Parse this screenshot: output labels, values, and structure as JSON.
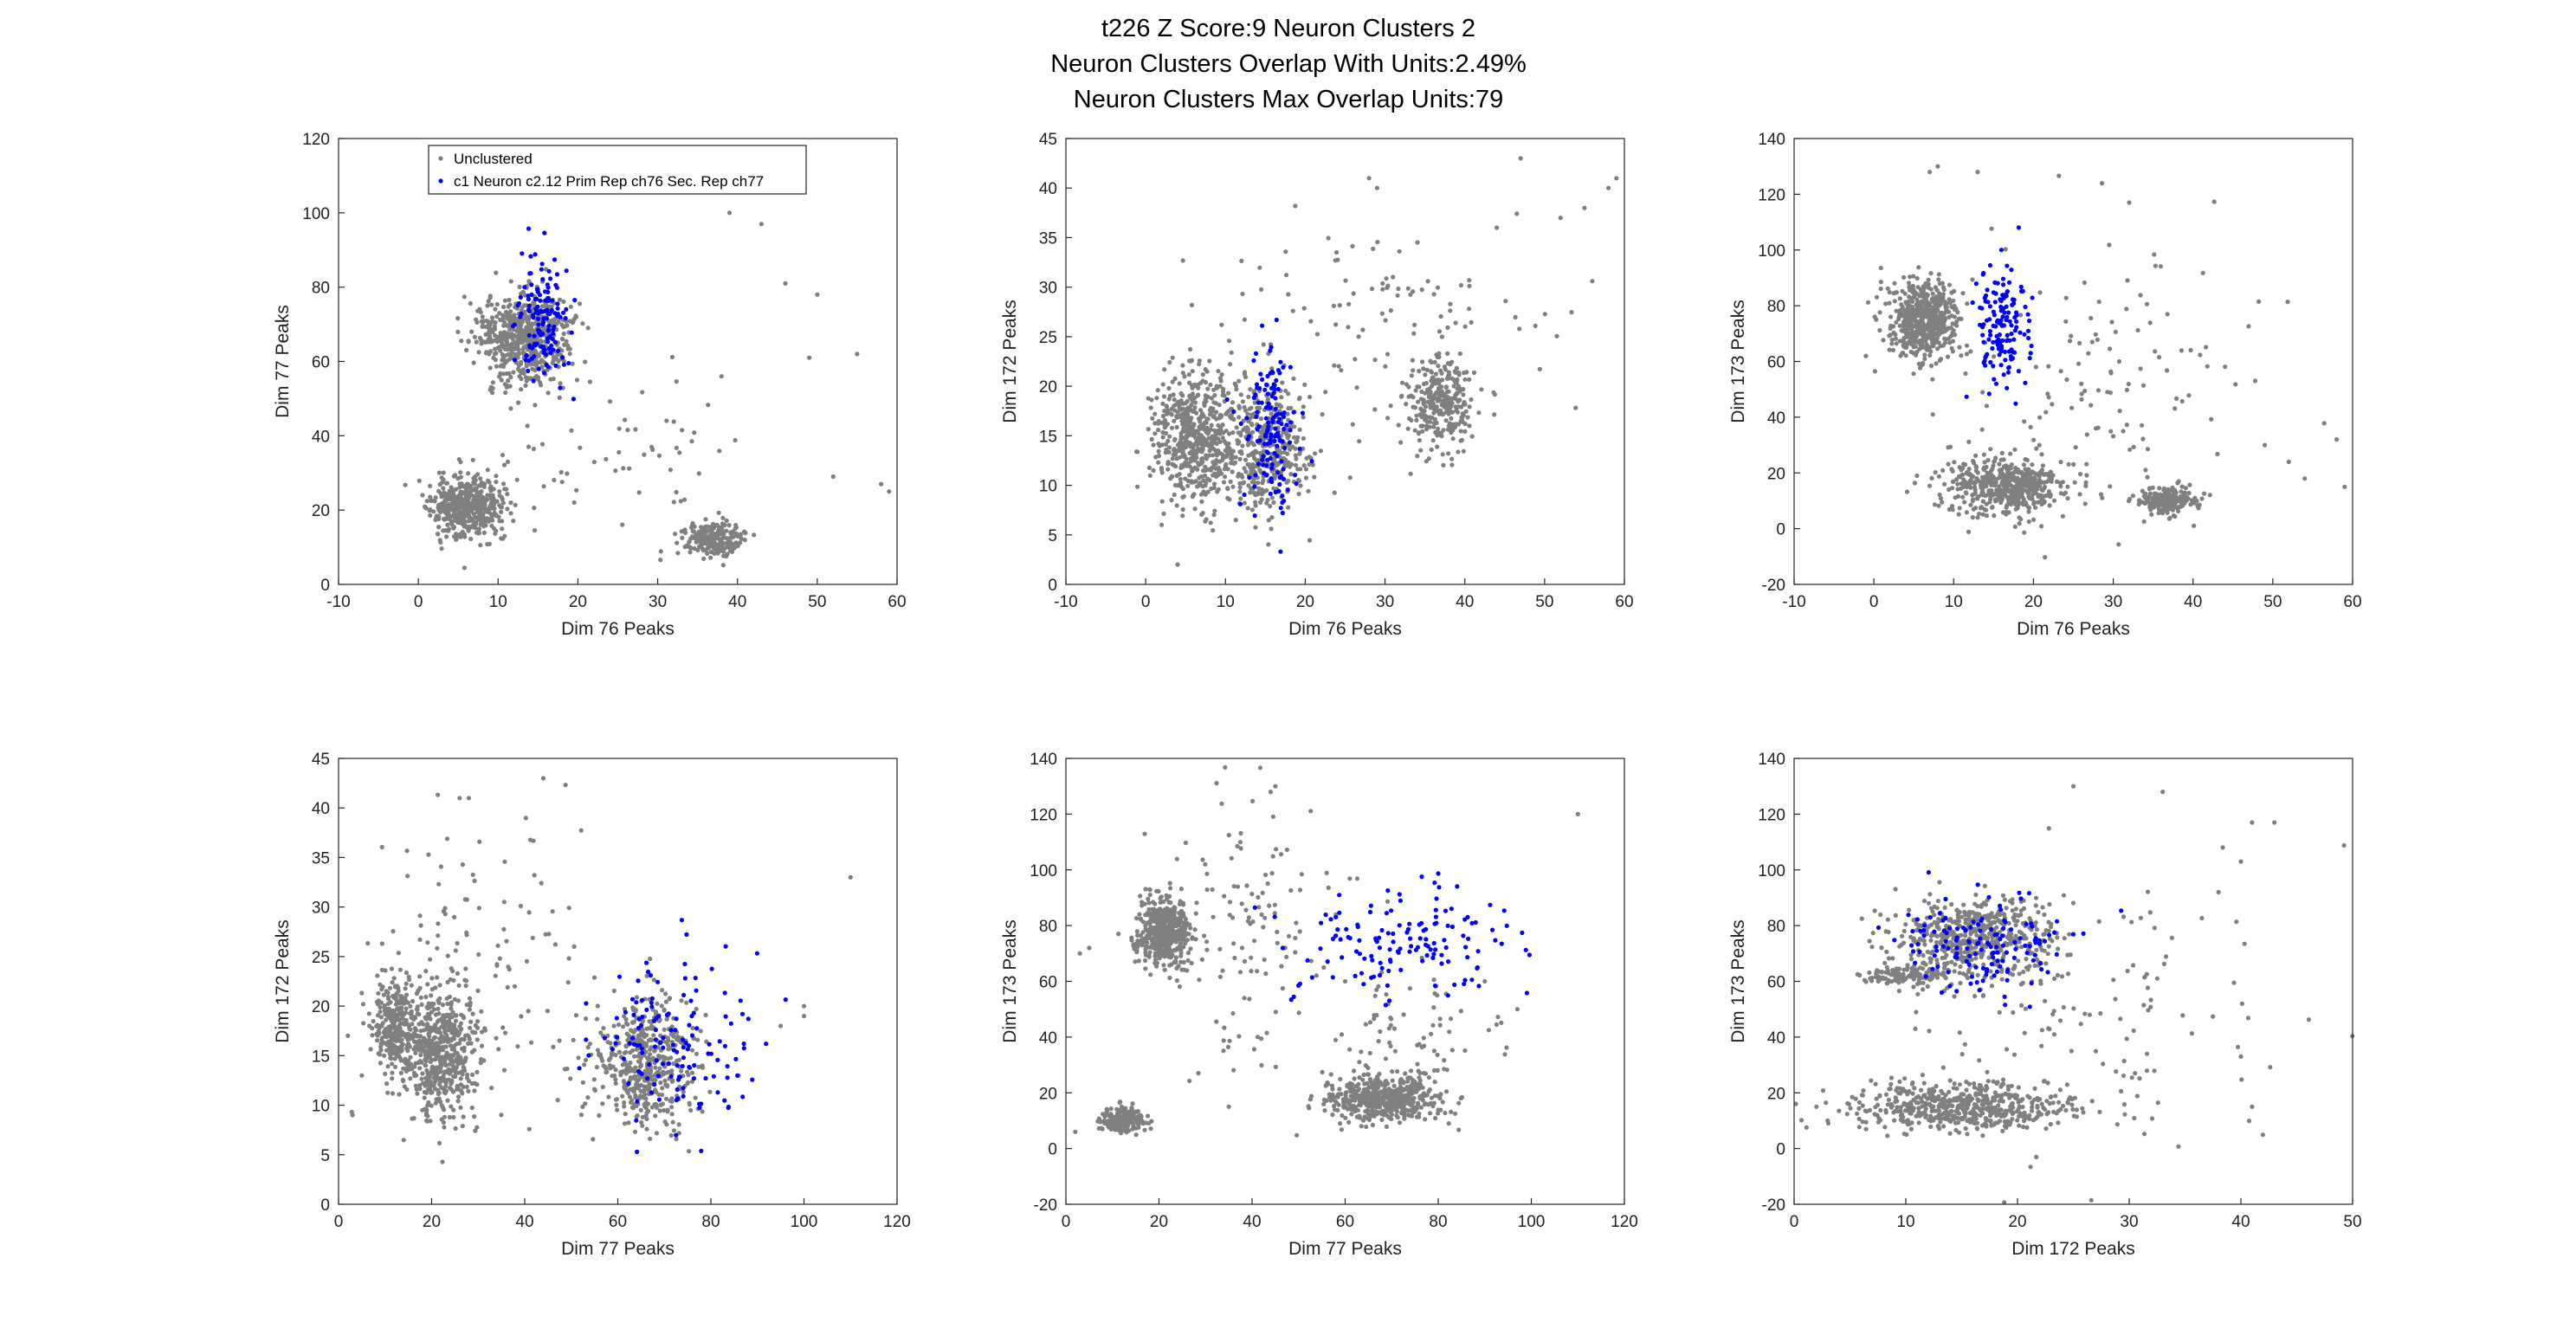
{
  "figure": {
    "title_lines": [
      "t226 Z Score:9 Neuron Clusters 2",
      "Neuron Clusters Overlap With Units:2.49%",
      "Neuron Clusters Max Overlap Units:79"
    ],
    "colors": {
      "unclustered": "#808080",
      "cluster": "#0000ff",
      "axis": "#262626"
    }
  },
  "legend": {
    "entries": [
      "Unclustered",
      "c1 Neuron c2.12 Prim Rep ch76 Sec. Rep ch77"
    ],
    "placement": "top-left of first subplot"
  },
  "chart_data": [
    {
      "type": "scatter",
      "xlabel": "Dim 76 Peaks",
      "ylabel": "Dim 77 Peaks",
      "xlim": [
        -10,
        60
      ],
      "ylim": [
        0,
        120
      ],
      "xticks": [
        -10,
        0,
        10,
        20,
        30,
        40,
        50,
        60
      ],
      "yticks": [
        0,
        20,
        40,
        60,
        80,
        100,
        120
      ],
      "series": [
        {
          "name": "Unclustered",
          "color": "#808080",
          "seed": 11,
          "clusters": [
            [
              6,
              21,
              2.2,
              4,
              500
            ],
            [
              13,
              67,
              3,
              6,
              600
            ],
            [
              37,
              12,
              2,
              2.5,
              220
            ],
            [
              26,
              35,
              9,
              14,
              60
            ]
          ],
          "extra": [
            [
              58,
              27
            ],
            [
              59,
              25
            ],
            [
              52,
              29
            ],
            [
              50,
              78
            ],
            [
              55,
              62
            ],
            [
              43,
              97
            ],
            [
              39,
              100
            ],
            [
              46,
              81
            ],
            [
              49,
              61
            ],
            [
              38,
              56
            ]
          ]
        },
        {
          "name": "c1 Neuron c2.12 Prim Rep ch76 Sec. Rep ch77",
          "color": "#0000ff",
          "seed": 21,
          "clusters": [
            [
              15.5,
              72,
              1.6,
              9,
              140
            ]
          ]
        }
      ]
    },
    {
      "type": "scatter",
      "xlabel": "Dim 76 Peaks",
      "ylabel": "Dim 172 Peaks",
      "xlim": [
        -10,
        60
      ],
      "ylim": [
        0,
        45
      ],
      "xticks": [
        -10,
        0,
        10,
        20,
        30,
        40,
        50,
        60
      ],
      "yticks": [
        0,
        5,
        10,
        15,
        20,
        25,
        30,
        35,
        40,
        45
      ],
      "series": [
        {
          "name": "Unclustered",
          "color": "#808080",
          "seed": 12,
          "clusters": [
            [
              6,
              15,
              2.3,
              3.2,
              550
            ],
            [
              15,
              14,
              2.8,
              3.2,
              450
            ],
            [
              37,
              18.5,
              2,
              2.3,
              300
            ],
            [
              30,
              26,
              11,
              6,
              110
            ]
          ],
          "extra": [
            [
              58,
              40
            ],
            [
              59,
              41
            ],
            [
              55,
              38
            ],
            [
              52,
              37
            ],
            [
              47,
              43
            ],
            [
              44,
              36
            ],
            [
              28,
              41
            ],
            [
              29,
              40
            ],
            [
              2,
              6
            ],
            [
              4,
              2
            ]
          ]
        },
        {
          "name": "c1 Neuron c2.12 Prim Rep ch76 Sec. Rep ch77",
          "color": "#0000ff",
          "seed": 22,
          "clusters": [
            [
              15.5,
              16,
              1.7,
              3.8,
              140
            ]
          ]
        }
      ]
    },
    {
      "type": "scatter",
      "xlabel": "Dim 76 Peaks",
      "ylabel": "Dim 173 Peaks",
      "xlim": [
        -10,
        60
      ],
      "ylim": [
        -20,
        140
      ],
      "xticks": [
        -10,
        0,
        10,
        20,
        30,
        40,
        50,
        60
      ],
      "yticks": [
        -20,
        0,
        20,
        40,
        60,
        80,
        100,
        120,
        140
      ],
      "series": [
        {
          "name": "Unclustered",
          "color": "#808080",
          "seed": 13,
          "clusters": [
            [
              6,
              75,
              2.2,
              7,
              550
            ],
            [
              17,
              15,
              4,
              5,
              500
            ],
            [
              37,
              10,
              1.8,
              2.4,
              220
            ],
            [
              30,
              60,
              11,
              25,
              120
            ]
          ],
          "extra": [
            [
              7,
              128
            ],
            [
              8,
              130
            ],
            [
              13,
              128
            ],
            [
              32,
              117
            ],
            [
              58,
              32
            ],
            [
              59,
              15
            ],
            [
              52,
              24
            ],
            [
              49,
              30
            ],
            [
              -1,
              62
            ],
            [
              54,
              18
            ]
          ]
        },
        {
          "name": "c1 Neuron c2.12 Prim Rep ch76 Sec. Rep ch77",
          "color": "#0000ff",
          "seed": 23,
          "clusters": [
            [
              16,
              72,
              1.7,
              11,
              140
            ]
          ]
        }
      ]
    },
    {
      "type": "scatter",
      "xlabel": "Dim 77 Peaks",
      "ylabel": "Dim 172 Peaks",
      "xlim": [
        0,
        120
      ],
      "ylim": [
        0,
        45
      ],
      "xticks": [
        0,
        20,
        40,
        60,
        80,
        100,
        120
      ],
      "yticks": [
        0,
        5,
        10,
        15,
        20,
        25,
        30,
        35,
        40,
        45
      ],
      "series": [
        {
          "name": "Unclustered",
          "color": "#808080",
          "seed": 14,
          "clusters": [
            [
              12,
              18,
              2.2,
              2.5,
              300
            ],
            [
              22,
              15,
              4,
              3.2,
              550
            ],
            [
              66,
              14,
              5.5,
              3.2,
              500
            ],
            [
              30,
              24,
              12,
              7,
              120
            ]
          ],
          "extra": [
            [
              110,
              33
            ],
            [
              100,
              19
            ],
            [
              100,
              20
            ],
            [
              44,
              43
            ],
            [
              26,
              41
            ],
            [
              28,
              41
            ],
            [
              2,
              17
            ],
            [
              5,
              13
            ],
            [
              95,
              18
            ],
            [
              3,
              9
            ]
          ]
        },
        {
          "name": "c1 Neuron c2.12 Prim Rep ch76 Sec. Rep ch77",
          "color": "#0000ff",
          "seed": 24,
          "clusters": [
            [
              70,
              16,
              9,
              4,
              140
            ]
          ]
        }
      ]
    },
    {
      "type": "scatter",
      "xlabel": "Dim 77 Peaks",
      "ylabel": "Dim 173 Peaks",
      "xlim": [
        0,
        120
      ],
      "ylim": [
        -20,
        140
      ],
      "xticks": [
        0,
        20,
        40,
        60,
        80,
        100,
        120
      ],
      "yticks": [
        -20,
        0,
        20,
        40,
        60,
        80,
        100,
        120,
        140
      ],
      "series": [
        {
          "name": "Unclustered",
          "color": "#808080",
          "seed": 15,
          "clusters": [
            [
              21,
              78,
              2.8,
              6,
              500
            ],
            [
              12,
              10,
              2.4,
              2.5,
              200
            ],
            [
              68,
              18,
              6,
              4,
              500
            ],
            [
              40,
              75,
              10,
              30,
              130
            ],
            [
              75,
              40,
              9,
              15,
              80
            ]
          ],
          "extra": [
            [
              110,
              120
            ],
            [
              45,
              130
            ],
            [
              44,
              128
            ],
            [
              3,
              70
            ],
            [
              5,
              72
            ],
            [
              2,
              6
            ],
            [
              97,
              50
            ],
            [
              90,
              60
            ],
            [
              60,
              60
            ],
            [
              35,
              15
            ]
          ]
        },
        {
          "name": "c1 Neuron c2.12 Prim Rep ch76 Sec. Rep ch77",
          "color": "#0000ff",
          "seed": 25,
          "clusters": [
            [
              72,
              73,
              12,
              10,
              140
            ]
          ]
        }
      ]
    },
    {
      "type": "scatter",
      "xlabel": "Dim 172 Peaks",
      "ylabel": "Dim 173 Peaks",
      "xlim": [
        0,
        50
      ],
      "ylim": [
        -20,
        140
      ],
      "xticks": [
        0,
        10,
        20,
        30,
        40,
        50
      ],
      "yticks": [
        -20,
        0,
        20,
        40,
        60,
        80,
        100,
        120,
        140
      ],
      "series": [
        {
          "name": "Unclustered",
          "color": "#808080",
          "seed": 16,
          "clusters": [
            [
              16,
              76,
              3.5,
              7,
              550
            ],
            [
              15,
              15,
              5,
              4,
              550
            ],
            [
              10,
              62,
              2,
              1.5,
              120
            ],
            [
              25,
              45,
              9,
              25,
              140
            ]
          ],
          "extra": [
            [
              41,
              117
            ],
            [
              43,
              117
            ],
            [
              40,
              103
            ],
            [
              38,
              92
            ],
            [
              33,
              128
            ],
            [
              25,
              130
            ],
            [
              2,
              15
            ],
            [
              3,
              10
            ],
            [
              40,
              33
            ],
            [
              41,
              15
            ]
          ]
        },
        {
          "name": "c1 Neuron c2.12 Prim Rep ch76 Sec. Rep ch77",
          "color": "#0000ff",
          "seed": 26,
          "clusters": [
            [
              17,
              72,
              4,
              9,
              140
            ]
          ]
        }
      ]
    }
  ]
}
